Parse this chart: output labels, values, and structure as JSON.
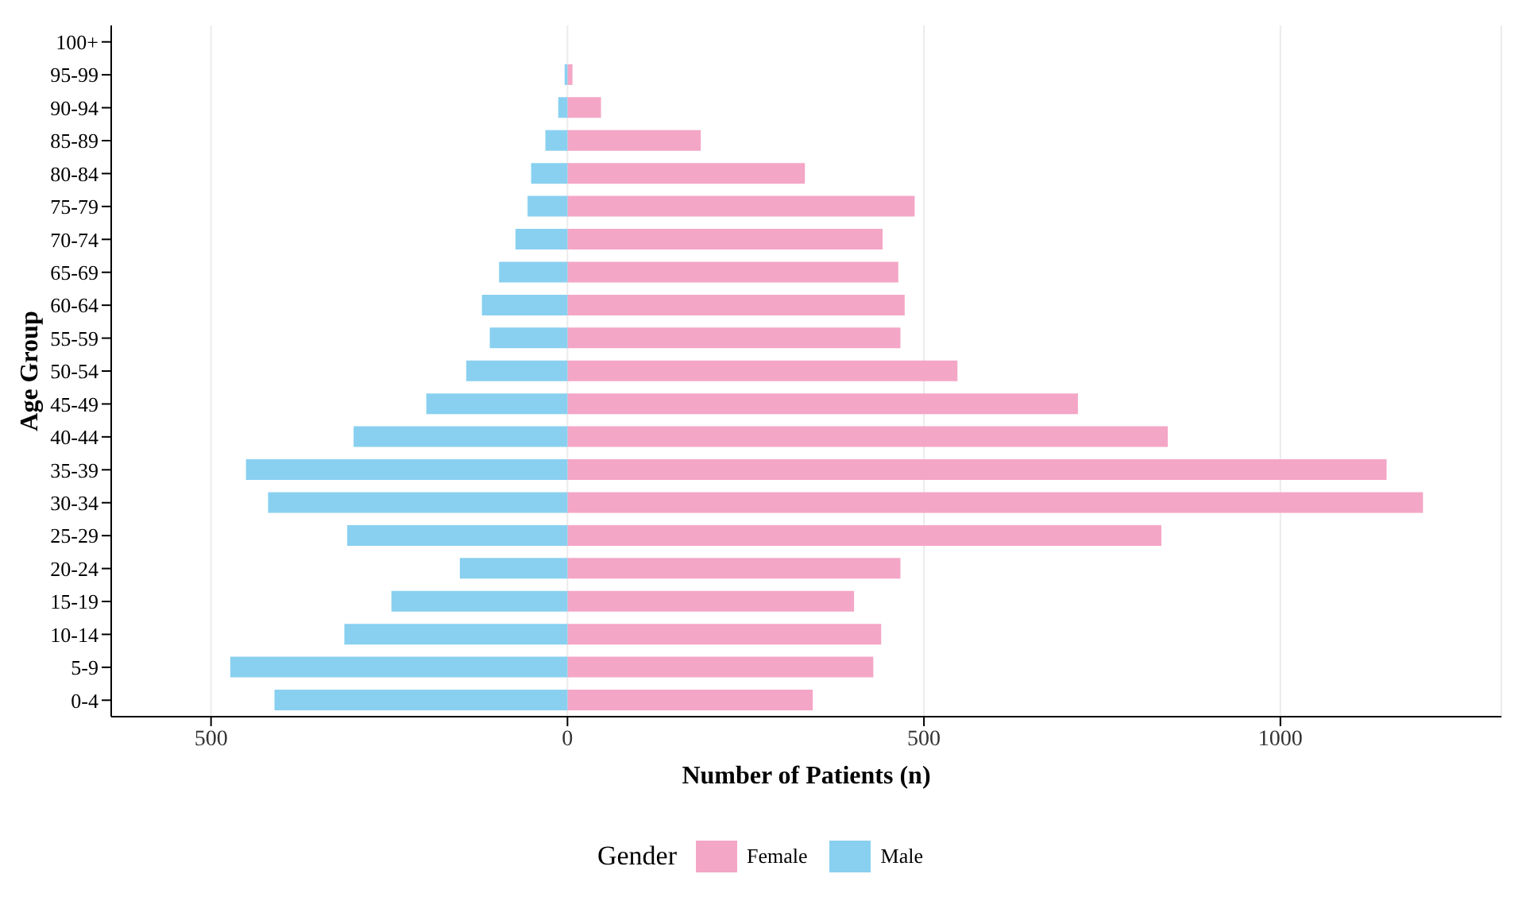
{
  "chart_data": {
    "type": "bar",
    "orientation": "horizontal",
    "stacked": true,
    "xlabel": "Number of Patients (n)",
    "ylabel": "Age Group",
    "legend_title": "Gender",
    "categories": [
      "100+",
      "95-99",
      "90-94",
      "85-89",
      "80-84",
      "75-79",
      "70-74",
      "65-69",
      "60-64",
      "55-59",
      "50-54",
      "45-49",
      "40-44",
      "35-39",
      "30-34",
      "25-29",
      "20-24",
      "15-19",
      "10-14",
      "5-9",
      "0-4"
    ],
    "series": [
      {
        "name": "Female",
        "color": "#f4a6c6",
        "values": [
          0,
          7,
          47,
          187,
          333,
          487,
          442,
          464,
          473,
          467,
          547,
          716,
          842,
          1149,
          1200,
          833,
          467,
          402,
          440,
          429,
          344
        ]
      },
      {
        "name": "Male",
        "color": "#89d0f0",
        "values": [
          0,
          -4,
          -13,
          -31,
          -51,
          -56,
          -73,
          -96,
          -120,
          -109,
          -142,
          -198,
          -300,
          -451,
          -420,
          -309,
          -151,
          -247,
          -313,
          -473,
          -411
        ]
      }
    ],
    "xlim": [
      -640,
      1310
    ],
    "xticks": [
      {
        "value": -500,
        "label": "500"
      },
      0,
      500,
      1000
    ],
    "grid": "x",
    "legend": "bottom"
  }
}
